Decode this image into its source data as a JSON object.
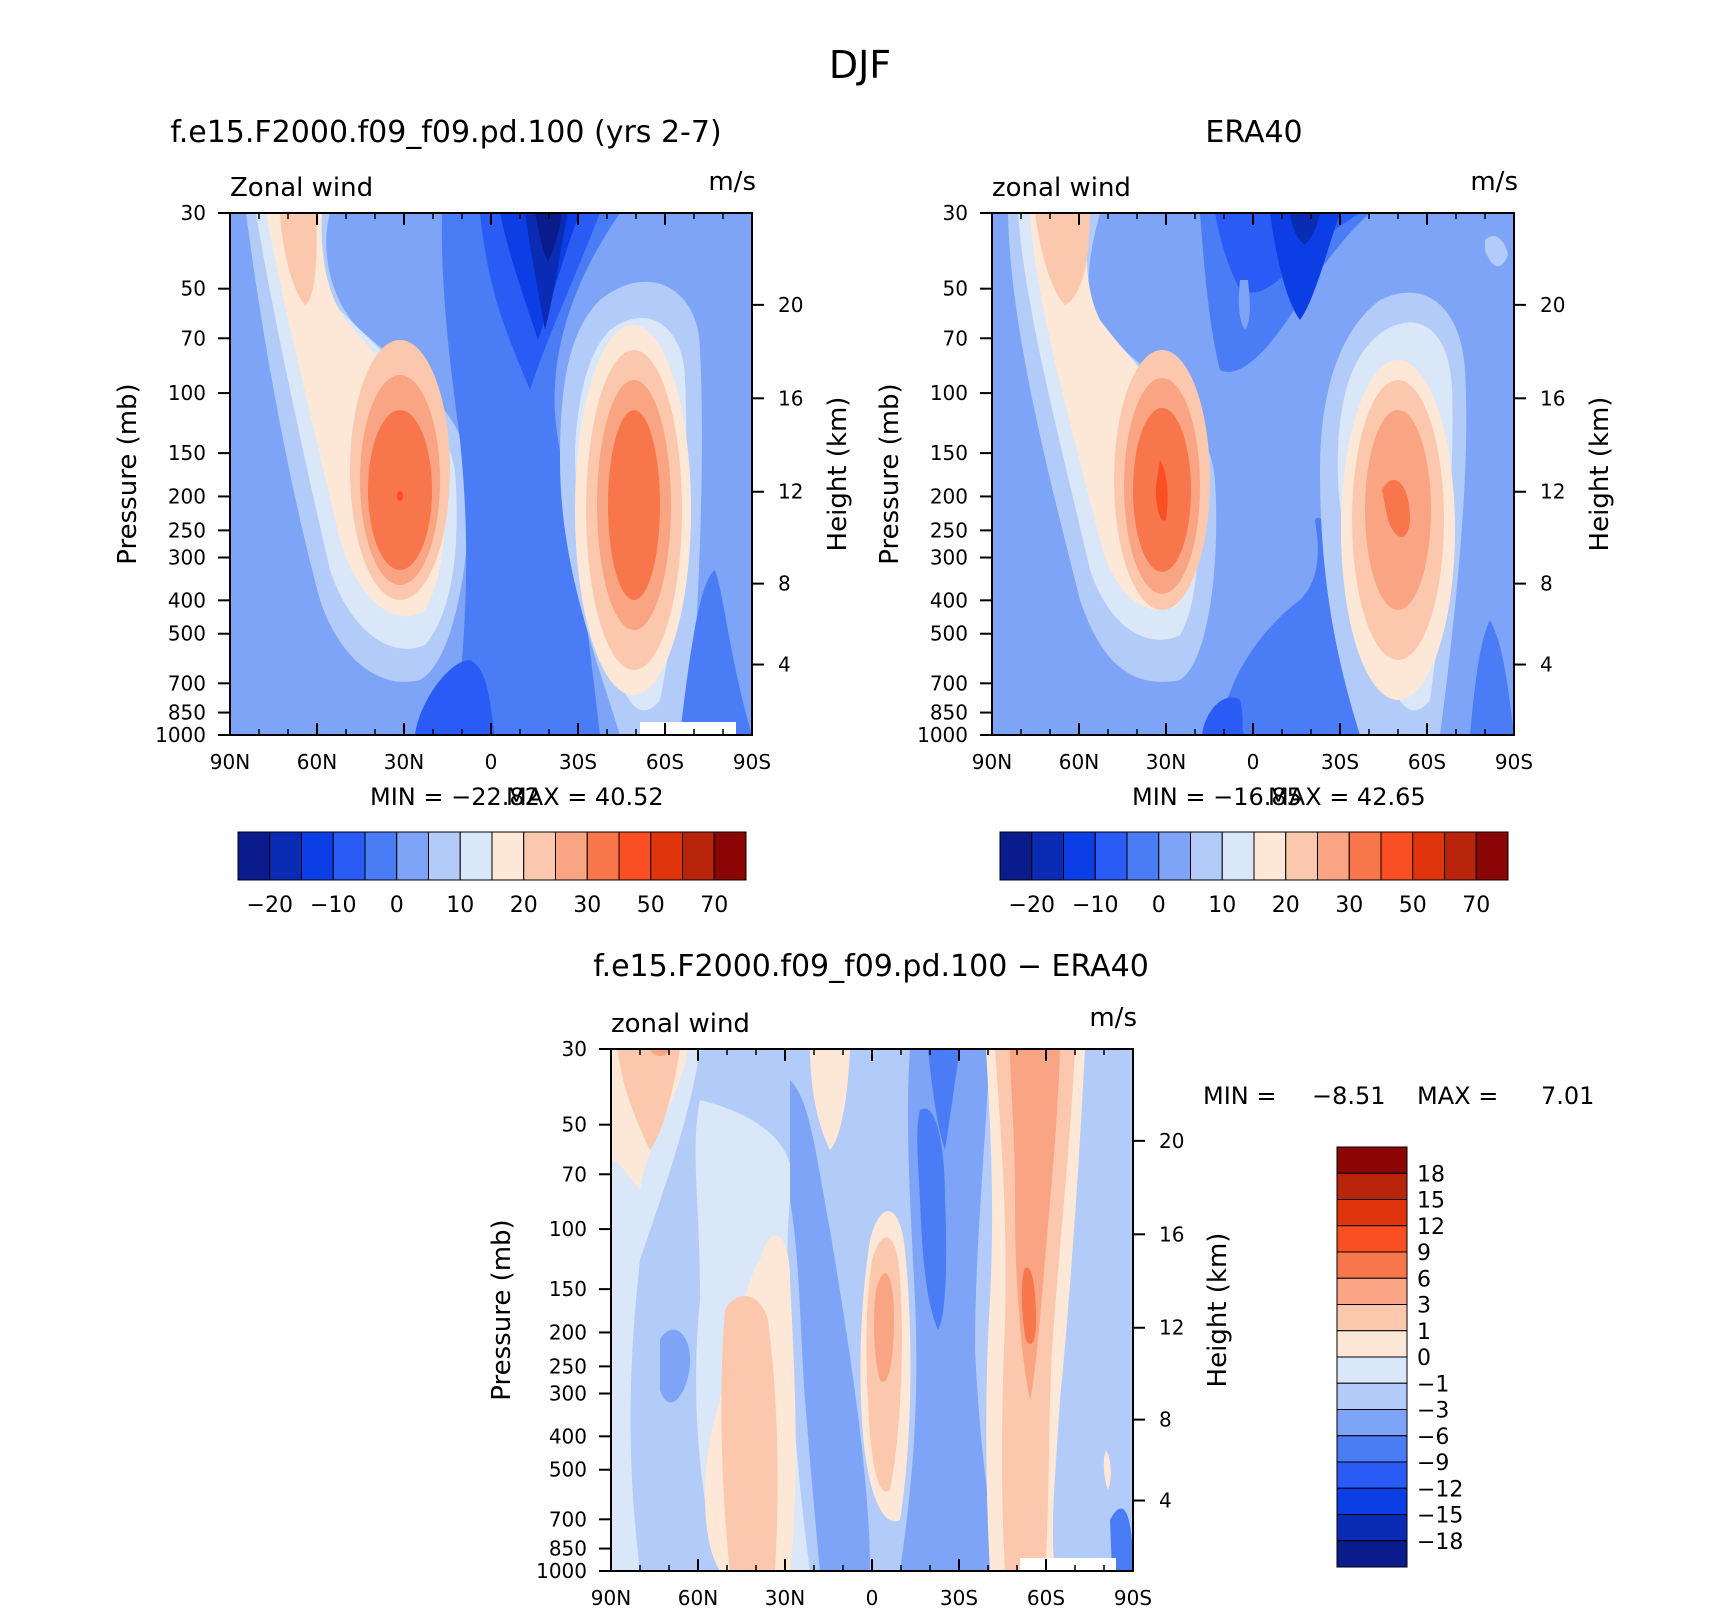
{
  "page_title": "DJF",
  "chart_data": [
    {
      "type": "contour",
      "title": "f.e15.F2000.f09_f09.pd.100 (yrs 2-7)",
      "variable_label": "Zonal wind",
      "units_label": "m/s",
      "ylabel": "Pressure (mb)",
      "ylabel_right": "Height (km)",
      "x_ticks": [
        "90N",
        "60N",
        "30N",
        "0",
        "30S",
        "60S",
        "90S"
      ],
      "y_ticks": [
        "30",
        "50",
        "70",
        "100",
        "150",
        "200",
        "250",
        "300",
        "400",
        "500",
        "700",
        "850",
        "1000"
      ],
      "y2_ticks": [
        "20",
        "16",
        "12",
        "8",
        "4"
      ],
      "min_label": "MIN = −22.82",
      "max_label": "MAX =   40.52",
      "min": -22.82,
      "max": 40.52,
      "colorbar_ticks": [
        "−20",
        "−10",
        "0",
        "10",
        "20",
        "30",
        "50",
        "70"
      ],
      "maxima": [
        {
          "name": "nh-subtropical-jet",
          "lat": 30,
          "p": 200,
          "value": 40.52
        },
        {
          "name": "sh-subtropical-jet",
          "lat": -45,
          "p": 220,
          "value": 36
        },
        {
          "name": "tropical-easterlies",
          "lat": -18,
          "p": 30,
          "value": -22.82
        }
      ]
    },
    {
      "type": "contour",
      "title": "ERA40",
      "variable_label": "zonal wind",
      "units_label": "m/s",
      "ylabel": "Pressure (mb)",
      "ylabel_right": "Height (km)",
      "x_ticks": [
        "90N",
        "60N",
        "30N",
        "0",
        "30S",
        "60S",
        "90S"
      ],
      "y_ticks": [
        "30",
        "50",
        "70",
        "100",
        "150",
        "200",
        "250",
        "300",
        "400",
        "500",
        "700",
        "850",
        "1000"
      ],
      "y2_ticks": [
        "20",
        "16",
        "12",
        "8",
        "4"
      ],
      "min_label": "MIN = −16.85",
      "max_label": "MAX =   42.65",
      "min": -16.85,
      "max": 42.65,
      "colorbar_ticks": [
        "−20",
        "−10",
        "0",
        "10",
        "20",
        "30",
        "50",
        "70"
      ],
      "maxima": [
        {
          "name": "nh-subtropical-jet",
          "lat": 30,
          "p": 200,
          "value": 42.65
        },
        {
          "name": "sh-subtropical-jet",
          "lat": -47,
          "p": 260,
          "value": 34
        },
        {
          "name": "tropical-easterlies",
          "lat": -15,
          "p": 30,
          "value": -16.85
        }
      ]
    },
    {
      "type": "contour",
      "title": "f.e15.F2000.f09_f09.pd.100 − ERA40",
      "variable_label": "zonal wind",
      "units_label": "m/s",
      "ylabel": "Pressure (mb)",
      "ylabel_right": "Height (km)",
      "x_ticks": [
        "90N",
        "60N",
        "30N",
        "0",
        "30S",
        "60S",
        "90S"
      ],
      "y_ticks": [
        "30",
        "50",
        "70",
        "100",
        "150",
        "200",
        "250",
        "300",
        "400",
        "500",
        "700",
        "850",
        "1000"
      ],
      "y2_ticks": [
        "20",
        "16",
        "12",
        "8",
        "4"
      ],
      "min_label": "MIN =",
      "min_value": "−8.51",
      "max_label": "MAX =",
      "max_value": "7.01",
      "min": -8.51,
      "max": 7.01,
      "colorbar_ticks": [
        "18",
        "15",
        "12",
        "9",
        "6",
        "3",
        "1",
        "0",
        "−1",
        "−3",
        "−6",
        "−9",
        "−12",
        "−15",
        "−18"
      ]
    }
  ],
  "colors": {
    "diverging_16": [
      "#0a1c8c",
      "#0a2cb4",
      "#0c3ee6",
      "#2a5cf5",
      "#4a7cf5",
      "#7ea4f7",
      "#b3cbf8",
      "#d9e7f8",
      "#fde8d7",
      "#fbc8ae",
      "#f9a584",
      "#f8764b",
      "#fa4f22",
      "#e0350c",
      "#b82409",
      "#8a0504"
    ],
    "diff_16": [
      "#8a0504",
      "#b82409",
      "#e0350c",
      "#fa4f22",
      "#f8764b",
      "#f9a584",
      "#fbc8ae",
      "#fde8d7",
      "#d9e7f8",
      "#b3cbf8",
      "#7ea4f7",
      "#4a7cf5",
      "#2a5cf5",
      "#0c3ee6",
      "#0a2cb4",
      "#0a1c8c"
    ]
  }
}
